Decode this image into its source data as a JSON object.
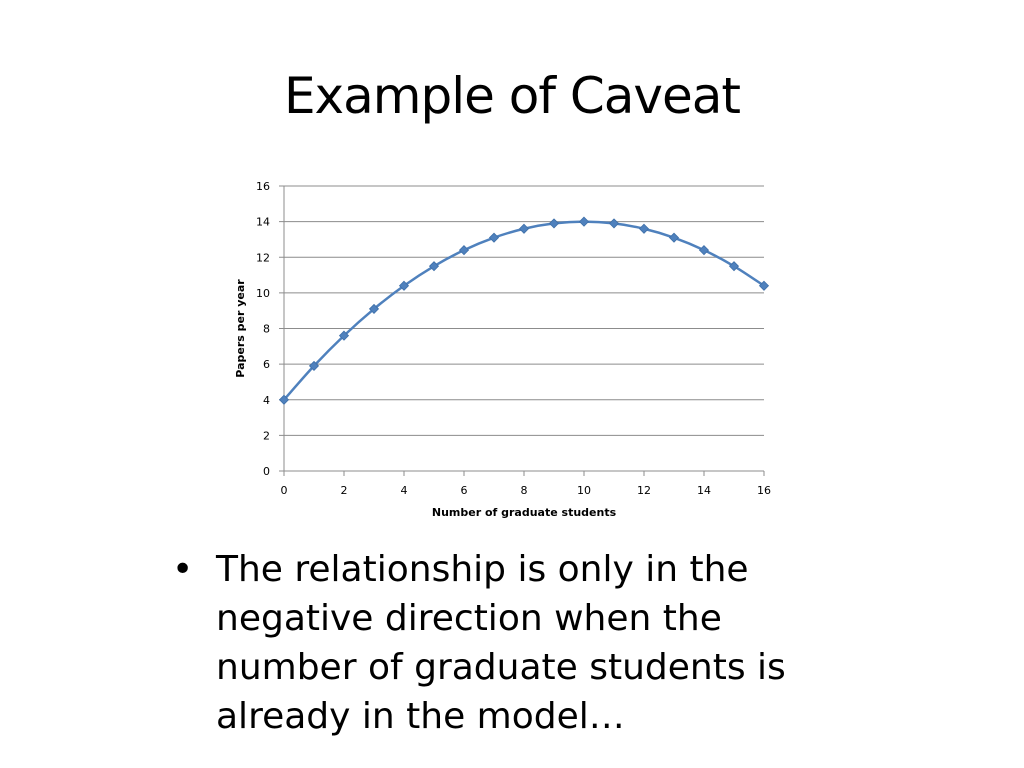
{
  "slide": {
    "title": "Example of Caveat",
    "bullets": [
      "The relationship is only in the negative direction when the number of graduate students is already in the model…"
    ]
  },
  "chart_data": {
    "type": "line",
    "title": "",
    "xlabel": "Number of graduate students",
    "ylabel": "Papers per year",
    "xlim": [
      0,
      16
    ],
    "ylim": [
      0,
      16
    ],
    "xticks": [
      0,
      2,
      4,
      6,
      8,
      10,
      12,
      14,
      16
    ],
    "yticks": [
      0,
      2,
      4,
      6,
      8,
      10,
      12,
      14,
      16
    ],
    "grid": "horizontal",
    "legend": "none",
    "series_color": "#4F81BD",
    "series": [
      {
        "x": [
          0,
          1,
          2,
          3,
          4,
          5,
          6,
          7,
          8,
          9,
          10,
          11,
          12,
          13,
          14,
          15,
          16
        ],
        "y": [
          4,
          5.9,
          7.6,
          9.1,
          10.4,
          11.5,
          12.4,
          13.1,
          13.6,
          13.9,
          14,
          13.9,
          13.6,
          13.1,
          12.4,
          11.5,
          10.4
        ]
      }
    ]
  }
}
